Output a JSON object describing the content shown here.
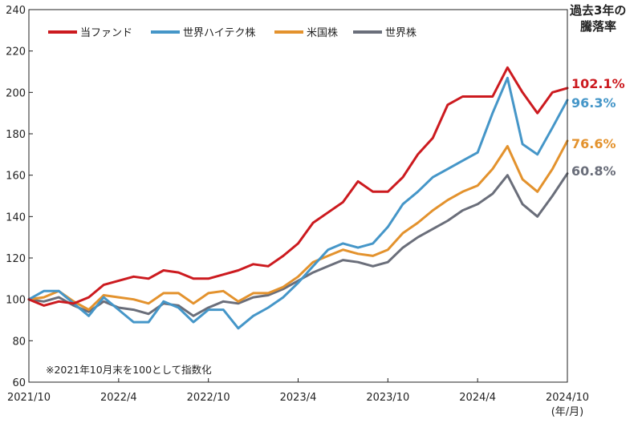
{
  "chart_data": {
    "type": "line",
    "side_title_lines": [
      "過去3年の",
      "騰落率"
    ],
    "note": "※2021年10月末を100として指数化",
    "x_unit_label": "(年/月)",
    "x_range": [
      "2021-10",
      "2024-10"
    ],
    "xticks": [
      {
        "x": "2021-10",
        "label": "2021/10"
      },
      {
        "x": "2022-04",
        "label": "2022/4"
      },
      {
        "x": "2022-10",
        "label": "2022/10"
      },
      {
        "x": "2023-04",
        "label": "2023/4"
      },
      {
        "x": "2023-10",
        "label": "2023/10"
      },
      {
        "x": "2024-04",
        "label": "2024/4"
      },
      {
        "x": "2024-10",
        "label": "2024/10"
      }
    ],
    "ylim": [
      60,
      240
    ],
    "yticks": [
      60,
      80,
      100,
      120,
      140,
      160,
      180,
      200,
      220,
      240
    ],
    "grid": false,
    "legend_position": "top-left",
    "series": [
      {
        "name": "当ファンド",
        "color": "#cc1a1f",
        "end_label": "102.1%",
        "points": [
          [
            "2021-10",
            100
          ],
          [
            "2021-11",
            97
          ],
          [
            "2021-12",
            99
          ],
          [
            "2022-01",
            98
          ],
          [
            "2022-02",
            101
          ],
          [
            "2022-03",
            107
          ],
          [
            "2022-04",
            109
          ],
          [
            "2022-05",
            111
          ],
          [
            "2022-06",
            110
          ],
          [
            "2022-07",
            114
          ],
          [
            "2022-08",
            113
          ],
          [
            "2022-09",
            110
          ],
          [
            "2022-10",
            110
          ],
          [
            "2022-11",
            112
          ],
          [
            "2022-12",
            114
          ],
          [
            "2023-01",
            117
          ],
          [
            "2023-02",
            116
          ],
          [
            "2023-03",
            121
          ],
          [
            "2023-04",
            127
          ],
          [
            "2023-05",
            137
          ],
          [
            "2023-06",
            142
          ],
          [
            "2023-07",
            147
          ],
          [
            "2023-08",
            157
          ],
          [
            "2023-09",
            152
          ],
          [
            "2023-10",
            152
          ],
          [
            "2023-11",
            159
          ],
          [
            "2023-12",
            170
          ],
          [
            "2024-01",
            178
          ],
          [
            "2024-02",
            194
          ],
          [
            "2024-03",
            198
          ],
          [
            "2024-04",
            198
          ],
          [
            "2024-05",
            198
          ],
          [
            "2024-06",
            212
          ],
          [
            "2024-07",
            200
          ],
          [
            "2024-08",
            190
          ],
          [
            "2024-09",
            200
          ],
          [
            "2024-10",
            202.1
          ]
        ]
      },
      {
        "name": "世界ハイテク株",
        "color": "#4596c8",
        "end_label": "96.3%",
        "points": [
          [
            "2021-10",
            100
          ],
          [
            "2021-11",
            104
          ],
          [
            "2021-12",
            104
          ],
          [
            "2022-01",
            98
          ],
          [
            "2022-02",
            92
          ],
          [
            "2022-03",
            101
          ],
          [
            "2022-04",
            95
          ],
          [
            "2022-05",
            89
          ],
          [
            "2022-06",
            89
          ],
          [
            "2022-07",
            99
          ],
          [
            "2022-08",
            96
          ],
          [
            "2022-09",
            89
          ],
          [
            "2022-10",
            95
          ],
          [
            "2022-11",
            95
          ],
          [
            "2022-12",
            86
          ],
          [
            "2023-01",
            92
          ],
          [
            "2023-02",
            96
          ],
          [
            "2023-03",
            101
          ],
          [
            "2023-04",
            108
          ],
          [
            "2023-05",
            116
          ],
          [
            "2023-06",
            124
          ],
          [
            "2023-07",
            127
          ],
          [
            "2023-08",
            125
          ],
          [
            "2023-09",
            127
          ],
          [
            "2023-10",
            135
          ],
          [
            "2023-11",
            146
          ],
          [
            "2023-12",
            152
          ],
          [
            "2024-01",
            159
          ],
          [
            "2024-02",
            163
          ],
          [
            "2024-03",
            167
          ],
          [
            "2024-04",
            171
          ],
          [
            "2024-05",
            190
          ],
          [
            "2024-06",
            207
          ],
          [
            "2024-07",
            175
          ],
          [
            "2024-08",
            170
          ],
          [
            "2024-09",
            183
          ],
          [
            "2024-10",
            196.3
          ]
        ]
      },
      {
        "name": "米国株",
        "color": "#e3922d",
        "end_label": "76.6%",
        "points": [
          [
            "2021-10",
            100
          ],
          [
            "2021-11",
            101
          ],
          [
            "2021-12",
            104
          ],
          [
            "2022-01",
            99
          ],
          [
            "2022-02",
            95
          ],
          [
            "2022-03",
            102
          ],
          [
            "2022-04",
            101
          ],
          [
            "2022-05",
            100
          ],
          [
            "2022-06",
            98
          ],
          [
            "2022-07",
            103
          ],
          [
            "2022-08",
            103
          ],
          [
            "2022-09",
            98
          ],
          [
            "2022-10",
            103
          ],
          [
            "2022-11",
            104
          ],
          [
            "2022-12",
            99
          ],
          [
            "2023-01",
            103
          ],
          [
            "2023-02",
            103
          ],
          [
            "2023-03",
            106
          ],
          [
            "2023-04",
            111
          ],
          [
            "2023-05",
            118
          ],
          [
            "2023-06",
            121
          ],
          [
            "2023-07",
            124
          ],
          [
            "2023-08",
            122
          ],
          [
            "2023-09",
            121
          ],
          [
            "2023-10",
            124
          ],
          [
            "2023-11",
            132
          ],
          [
            "2023-12",
            137
          ],
          [
            "2024-01",
            143
          ],
          [
            "2024-02",
            148
          ],
          [
            "2024-03",
            152
          ],
          [
            "2024-04",
            155
          ],
          [
            "2024-05",
            163
          ],
          [
            "2024-06",
            174
          ],
          [
            "2024-07",
            158
          ],
          [
            "2024-08",
            152
          ],
          [
            "2024-09",
            163
          ],
          [
            "2024-10",
            176.6
          ]
        ]
      },
      {
        "name": "世界株",
        "color": "#6a6e7a",
        "end_label": "60.8%",
        "points": [
          [
            "2021-10",
            100
          ],
          [
            "2021-11",
            99
          ],
          [
            "2021-12",
            101
          ],
          [
            "2022-01",
            97
          ],
          [
            "2022-02",
            94
          ],
          [
            "2022-03",
            99
          ],
          [
            "2022-04",
            96
          ],
          [
            "2022-05",
            95
          ],
          [
            "2022-06",
            93
          ],
          [
            "2022-07",
            98
          ],
          [
            "2022-08",
            97
          ],
          [
            "2022-09",
            92
          ],
          [
            "2022-10",
            96
          ],
          [
            "2022-11",
            99
          ],
          [
            "2022-12",
            98
          ],
          [
            "2023-01",
            101
          ],
          [
            "2023-02",
            102
          ],
          [
            "2023-03",
            105
          ],
          [
            "2023-04",
            109
          ],
          [
            "2023-05",
            113
          ],
          [
            "2023-06",
            116
          ],
          [
            "2023-07",
            119
          ],
          [
            "2023-08",
            118
          ],
          [
            "2023-09",
            116
          ],
          [
            "2023-10",
            118
          ],
          [
            "2023-11",
            125
          ],
          [
            "2023-12",
            130
          ],
          [
            "2024-01",
            134
          ],
          [
            "2024-02",
            138
          ],
          [
            "2024-03",
            143
          ],
          [
            "2024-04",
            146
          ],
          [
            "2024-05",
            151
          ],
          [
            "2024-06",
            160
          ],
          [
            "2024-07",
            146
          ],
          [
            "2024-08",
            140
          ],
          [
            "2024-09",
            150
          ],
          [
            "2024-10",
            160.8
          ]
        ]
      }
    ]
  }
}
